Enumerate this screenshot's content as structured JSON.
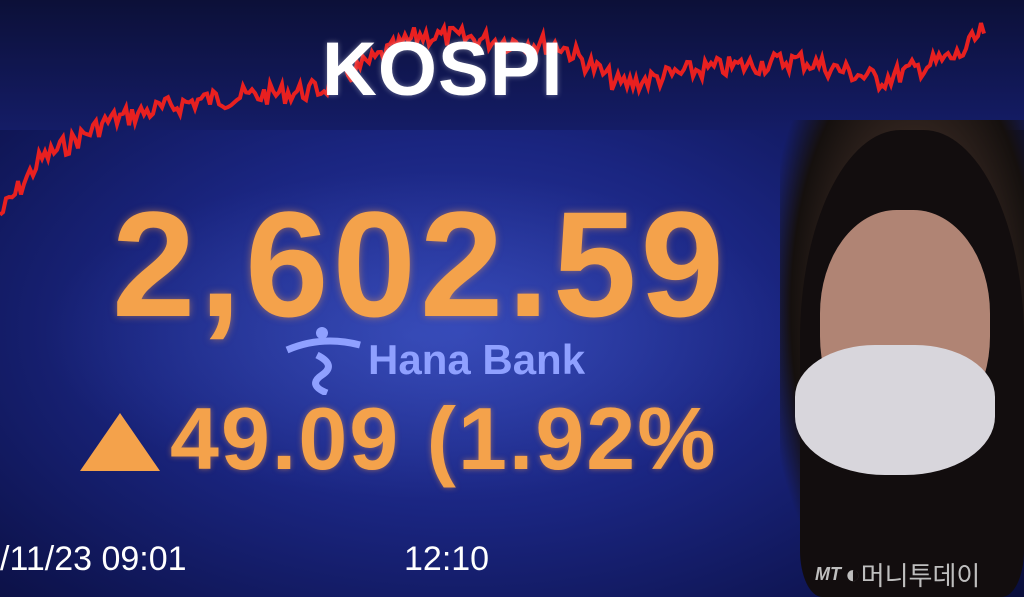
{
  "board": {
    "title": "KOSPI",
    "index_value": "2,602.59",
    "change": "49.09 (1.92%",
    "direction_icon": "up-triangle-icon",
    "sponsor": "Hana Bank",
    "date_start": "/11/23 09:01",
    "time_current": "12:10"
  },
  "watermark": {
    "prefix": "MT",
    "name": "머니투데이"
  },
  "colors": {
    "line": "#e82020",
    "value": "#f4a24b",
    "background": "#1a2580"
  }
}
